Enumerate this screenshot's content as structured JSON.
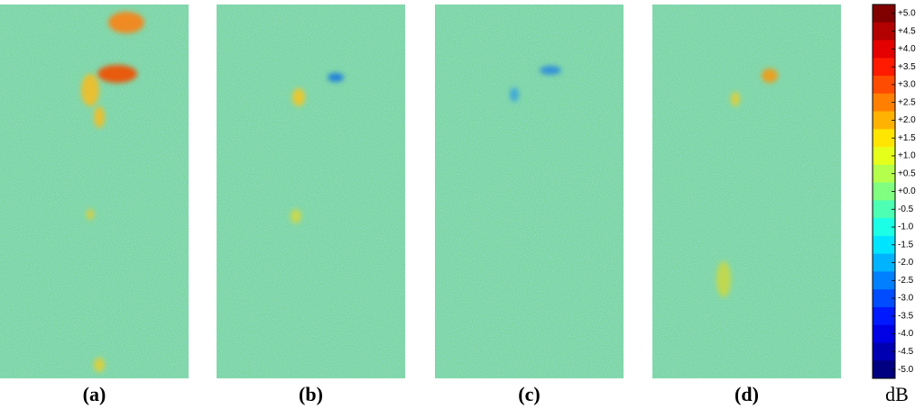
{
  "panels": [
    {
      "label": "(a)"
    },
    {
      "label": "(b)"
    },
    {
      "label": "(c)"
    },
    {
      "label": "(d)"
    }
  ],
  "colorbar": {
    "labels": [
      "+5.0",
      "+4.5",
      "+4.0",
      "+3.5",
      "+3.0",
      "+2.5",
      "+2.0",
      "+1.5",
      "+1.0",
      "+0.5",
      "+0.0",
      "-0.5",
      "-1.0",
      "-1.5",
      "-2.0",
      "-2.5",
      "-3.0",
      "-3.5",
      "-4.0",
      "-4.5",
      "-5.0"
    ],
    "unit": "dB"
  }
}
